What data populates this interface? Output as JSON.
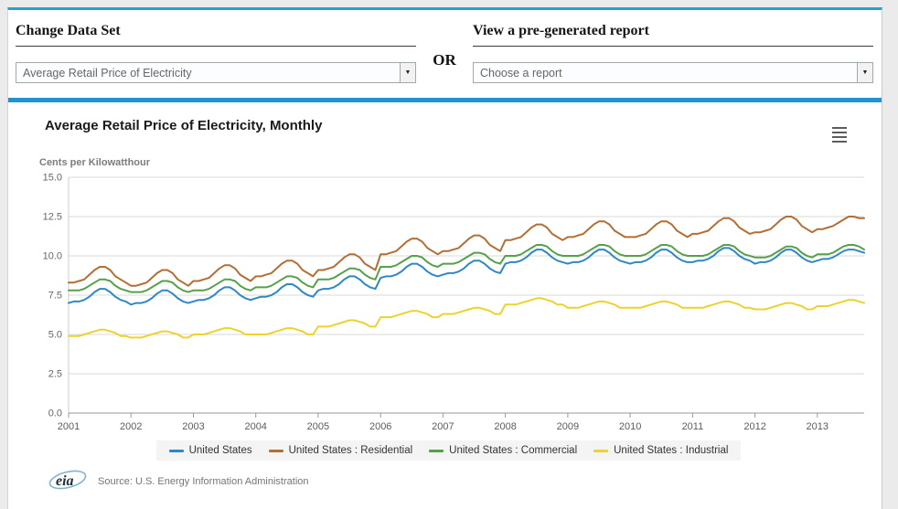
{
  "page": {
    "or_label": "OR",
    "source_note": "Source: U.S. Energy Information Administration",
    "logo_text": "eia"
  },
  "data_set_panel": {
    "heading": "Change Data Set",
    "dropdown_value": "Average Retail Price of Electricity"
  },
  "report_panel": {
    "heading": "View a pre-generated report",
    "dropdown_value": "Choose a report"
  },
  "chart_data": {
    "type": "line",
    "title": "Average Retail Price of Electricity, Monthly",
    "ylabel": "Cents per Kilowatthour",
    "xlabel": "",
    "ylim": [
      0,
      15
    ],
    "yticks": [
      0.0,
      2.5,
      5.0,
      7.5,
      10.0,
      12.5,
      15.0
    ],
    "xticks": [
      "2001",
      "2002",
      "2003",
      "2004",
      "2005",
      "2006",
      "2007",
      "2008",
      "2009",
      "2010",
      "2011",
      "2012",
      "2013"
    ],
    "x_start": "2001-01",
    "x_end": "2013-10",
    "frequency": "monthly",
    "grid": true,
    "legend_position": "bottom",
    "axis_colors": {
      "grid": "#d9d9d9",
      "axis": "#9a9a9a",
      "label": "#5c5c5c"
    },
    "series": [
      {
        "name": "United States",
        "color": "#2e87c8",
        "values": [
          7.0,
          7.1,
          7.1,
          7.2,
          7.4,
          7.7,
          7.9,
          7.9,
          7.7,
          7.4,
          7.2,
          7.1,
          6.9,
          7.0,
          7.0,
          7.1,
          7.3,
          7.6,
          7.8,
          7.8,
          7.6,
          7.3,
          7.1,
          7.0,
          7.1,
          7.2,
          7.2,
          7.3,
          7.5,
          7.8,
          8.0,
          8.0,
          7.8,
          7.5,
          7.3,
          7.2,
          7.3,
          7.4,
          7.4,
          7.5,
          7.7,
          8.0,
          8.2,
          8.2,
          8.0,
          7.7,
          7.5,
          7.4,
          7.8,
          7.9,
          7.9,
          8.0,
          8.2,
          8.5,
          8.7,
          8.7,
          8.5,
          8.2,
          8.0,
          7.9,
          8.6,
          8.7,
          8.7,
          8.8,
          9.0,
          9.3,
          9.5,
          9.5,
          9.3,
          9.0,
          8.8,
          8.7,
          8.8,
          8.9,
          8.9,
          9.0,
          9.2,
          9.5,
          9.7,
          9.7,
          9.5,
          9.2,
          9.0,
          8.9,
          9.5,
          9.6,
          9.6,
          9.7,
          9.9,
          10.2,
          10.4,
          10.4,
          10.2,
          9.9,
          9.7,
          9.6,
          9.5,
          9.6,
          9.6,
          9.7,
          9.9,
          10.2,
          10.4,
          10.4,
          10.2,
          9.9,
          9.7,
          9.6,
          9.5,
          9.6,
          9.6,
          9.7,
          9.9,
          10.2,
          10.4,
          10.4,
          10.2,
          9.9,
          9.7,
          9.6,
          9.6,
          9.7,
          9.7,
          9.8,
          10.0,
          10.3,
          10.5,
          10.5,
          10.3,
          10.0,
          9.8,
          9.7,
          9.5,
          9.6,
          9.6,
          9.7,
          9.9,
          10.2,
          10.4,
          10.4,
          10.2,
          9.9,
          9.7,
          9.6,
          9.7,
          9.8,
          9.8,
          9.9,
          10.1,
          10.3,
          10.4,
          10.4,
          10.3,
          10.2
        ]
      },
      {
        "name": "United States : Residential",
        "color": "#b26f35",
        "values": [
          8.3,
          8.3,
          8.4,
          8.5,
          8.8,
          9.1,
          9.3,
          9.3,
          9.1,
          8.7,
          8.5,
          8.3,
          8.1,
          8.1,
          8.2,
          8.3,
          8.6,
          8.9,
          9.1,
          9.1,
          8.9,
          8.5,
          8.3,
          8.1,
          8.4,
          8.4,
          8.5,
          8.6,
          8.9,
          9.2,
          9.4,
          9.4,
          9.2,
          8.8,
          8.6,
          8.4,
          8.7,
          8.7,
          8.8,
          8.9,
          9.2,
          9.5,
          9.7,
          9.7,
          9.5,
          9.1,
          8.9,
          8.7,
          9.1,
          9.1,
          9.2,
          9.3,
          9.6,
          9.9,
          10.1,
          10.1,
          9.9,
          9.5,
          9.3,
          9.1,
          10.1,
          10.1,
          10.2,
          10.3,
          10.6,
          10.9,
          11.1,
          11.1,
          10.9,
          10.5,
          10.3,
          10.1,
          10.3,
          10.3,
          10.4,
          10.5,
          10.8,
          11.1,
          11.3,
          11.3,
          11.1,
          10.7,
          10.5,
          10.3,
          11.0,
          11.0,
          11.1,
          11.2,
          11.5,
          11.8,
          12.0,
          12.0,
          11.8,
          11.4,
          11.2,
          11.0,
          11.2,
          11.2,
          11.3,
          11.4,
          11.7,
          12.0,
          12.2,
          12.2,
          12.0,
          11.6,
          11.4,
          11.2,
          11.2,
          11.2,
          11.3,
          11.4,
          11.7,
          12.0,
          12.2,
          12.2,
          12.0,
          11.6,
          11.4,
          11.2,
          11.4,
          11.4,
          11.5,
          11.6,
          11.9,
          12.2,
          12.4,
          12.4,
          12.2,
          11.8,
          11.6,
          11.4,
          11.5,
          11.5,
          11.6,
          11.7,
          12.0,
          12.3,
          12.5,
          12.5,
          12.3,
          11.9,
          11.7,
          11.5,
          11.7,
          11.7,
          11.8,
          11.9,
          12.1,
          12.3,
          12.5,
          12.5,
          12.4,
          12.4
        ]
      },
      {
        "name": "United States : Commercial",
        "color": "#55a14a",
        "values": [
          7.8,
          7.8,
          7.8,
          7.9,
          8.1,
          8.3,
          8.5,
          8.5,
          8.4,
          8.1,
          7.9,
          7.8,
          7.7,
          7.7,
          7.7,
          7.8,
          8.0,
          8.2,
          8.4,
          8.4,
          8.3,
          8.0,
          7.8,
          7.7,
          7.8,
          7.8,
          7.8,
          7.9,
          8.1,
          8.3,
          8.5,
          8.5,
          8.4,
          8.1,
          7.9,
          7.8,
          8.0,
          8.0,
          8.0,
          8.1,
          8.3,
          8.5,
          8.7,
          8.7,
          8.6,
          8.3,
          8.1,
          8.0,
          8.5,
          8.5,
          8.5,
          8.6,
          8.8,
          9.0,
          9.2,
          9.2,
          9.1,
          8.8,
          8.6,
          8.5,
          9.3,
          9.3,
          9.3,
          9.4,
          9.6,
          9.8,
          10.0,
          10.0,
          9.9,
          9.6,
          9.4,
          9.3,
          9.5,
          9.5,
          9.5,
          9.6,
          9.8,
          10.0,
          10.2,
          10.2,
          10.1,
          9.8,
          9.6,
          9.5,
          10.0,
          10.0,
          10.0,
          10.1,
          10.3,
          10.5,
          10.7,
          10.7,
          10.6,
          10.3,
          10.1,
          10.0,
          10.0,
          10.0,
          10.0,
          10.1,
          10.3,
          10.5,
          10.7,
          10.7,
          10.6,
          10.3,
          10.1,
          10.0,
          10.0,
          10.0,
          10.0,
          10.1,
          10.3,
          10.5,
          10.7,
          10.7,
          10.6,
          10.3,
          10.1,
          10.0,
          10.0,
          10.0,
          10.0,
          10.1,
          10.3,
          10.5,
          10.7,
          10.7,
          10.6,
          10.3,
          10.1,
          10.0,
          9.9,
          9.9,
          9.9,
          10.0,
          10.2,
          10.4,
          10.6,
          10.6,
          10.5,
          10.2,
          10.0,
          9.9,
          10.1,
          10.1,
          10.1,
          10.2,
          10.4,
          10.6,
          10.7,
          10.7,
          10.6,
          10.4
        ]
      },
      {
        "name": "United States : Industrial",
        "color": "#edd22f",
        "values": [
          4.9,
          4.9,
          4.9,
          5.0,
          5.1,
          5.2,
          5.3,
          5.3,
          5.2,
          5.1,
          4.9,
          4.9,
          4.8,
          4.8,
          4.8,
          4.9,
          5.0,
          5.1,
          5.2,
          5.2,
          5.1,
          5.0,
          4.8,
          4.8,
          5.0,
          5.0,
          5.0,
          5.1,
          5.2,
          5.3,
          5.4,
          5.4,
          5.3,
          5.2,
          5.0,
          5.0,
          5.0,
          5.0,
          5.0,
          5.1,
          5.2,
          5.3,
          5.4,
          5.4,
          5.3,
          5.2,
          5.0,
          5.0,
          5.5,
          5.5,
          5.5,
          5.6,
          5.7,
          5.8,
          5.9,
          5.9,
          5.8,
          5.7,
          5.5,
          5.5,
          6.1,
          6.1,
          6.1,
          6.2,
          6.3,
          6.4,
          6.5,
          6.5,
          6.4,
          6.3,
          6.1,
          6.1,
          6.3,
          6.3,
          6.3,
          6.4,
          6.5,
          6.6,
          6.7,
          6.7,
          6.6,
          6.5,
          6.3,
          6.3,
          6.9,
          6.9,
          6.9,
          7.0,
          7.1,
          7.2,
          7.3,
          7.3,
          7.2,
          7.1,
          6.9,
          6.9,
          6.7,
          6.7,
          6.7,
          6.8,
          6.9,
          7.0,
          7.1,
          7.1,
          7.0,
          6.9,
          6.7,
          6.7,
          6.7,
          6.7,
          6.7,
          6.8,
          6.9,
          7.0,
          7.1,
          7.1,
          7.0,
          6.9,
          6.7,
          6.7,
          6.7,
          6.7,
          6.7,
          6.8,
          6.9,
          7.0,
          7.1,
          7.1,
          7.0,
          6.9,
          6.7,
          6.7,
          6.6,
          6.6,
          6.6,
          6.7,
          6.8,
          6.9,
          7.0,
          7.0,
          6.9,
          6.8,
          6.6,
          6.6,
          6.8,
          6.8,
          6.8,
          6.9,
          7.0,
          7.1,
          7.2,
          7.2,
          7.1,
          7.0
        ]
      }
    ]
  }
}
